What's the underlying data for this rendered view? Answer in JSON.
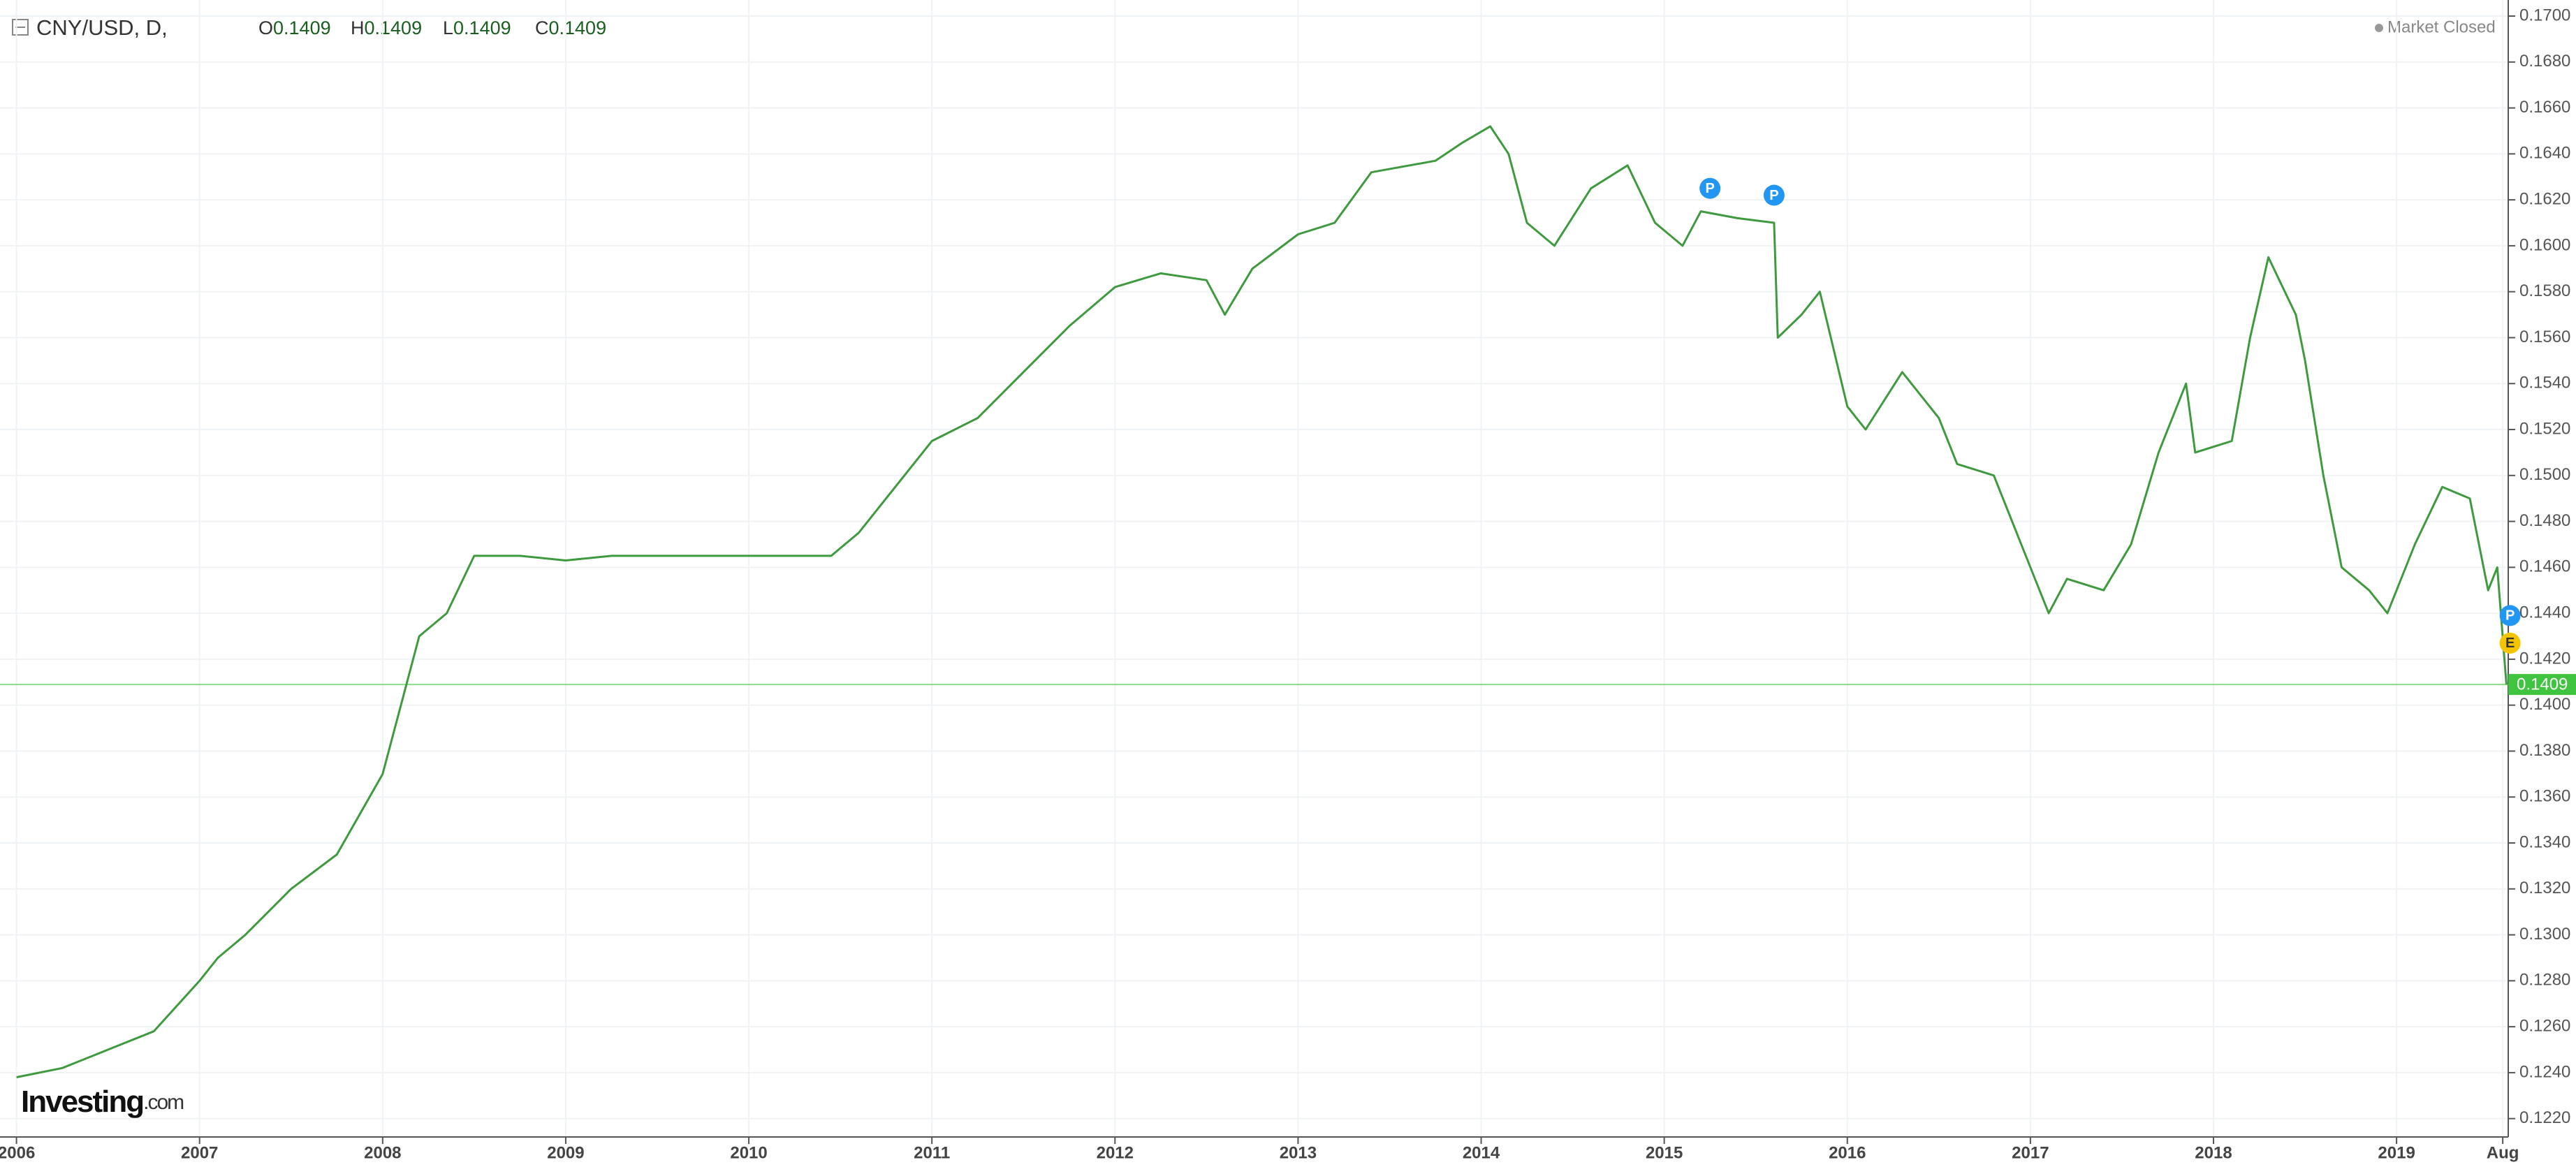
{
  "chart_data": {
    "type": "line",
    "title": "CNY/USD, D,",
    "ohlc": [
      {
        "label": "O",
        "value": 0.1409
      },
      {
        "label": "H",
        "value": 0.1409
      },
      {
        "label": "L",
        "value": 0.1409
      },
      {
        "label": "C",
        "value": 0.1409
      }
    ],
    "status": "Market Closed",
    "watermark": "Investing",
    "watermark_suffix": ".com",
    "last_price": 0.1409,
    "last_price_color": "#3ec43e",
    "x": [
      2006.0,
      2006.25,
      2006.5,
      2006.75,
      2007.0,
      2007.1,
      2007.25,
      2007.5,
      2007.75,
      2008.0,
      2008.1,
      2008.2,
      2008.35,
      2008.5,
      2008.75,
      2009.0,
      2009.25,
      2009.5,
      2010.0,
      2010.45,
      2010.6,
      2010.75,
      2011.0,
      2011.25,
      2011.5,
      2011.75,
      2012.0,
      2012.25,
      2012.5,
      2012.6,
      2012.75,
      2013.0,
      2013.2,
      2013.4,
      2013.75,
      2013.9,
      2014.05,
      2014.15,
      2014.25,
      2014.4,
      2014.6,
      2014.8,
      2014.95,
      2015.1,
      2015.2,
      2015.4,
      2015.6,
      2015.62,
      2015.75,
      2015.85,
      2016.0,
      2016.1,
      2016.3,
      2016.5,
      2016.6,
      2016.8,
      2016.95,
      2017.1,
      2017.2,
      2017.4,
      2017.55,
      2017.7,
      2017.85,
      2017.9,
      2018.1,
      2018.2,
      2018.3,
      2018.45,
      2018.5,
      2018.6,
      2018.7,
      2018.85,
      2018.95,
      2019.1,
      2019.25,
      2019.4,
      2019.5,
      2019.55,
      2019.6
    ],
    "series": [
      {
        "name": "CNY/USD",
        "color": "#3f9a3f",
        "values": [
          0.1238,
          0.1242,
          0.125,
          0.1258,
          0.128,
          0.129,
          0.13,
          0.132,
          0.1335,
          0.137,
          0.14,
          0.143,
          0.144,
          0.1465,
          0.1465,
          0.1463,
          0.1465,
          0.1465,
          0.1465,
          0.1465,
          0.1475,
          0.149,
          0.1515,
          0.1525,
          0.1545,
          0.1565,
          0.1582,
          0.1588,
          0.1585,
          0.157,
          0.159,
          0.1605,
          0.161,
          0.1632,
          0.1637,
          0.1645,
          0.1652,
          0.164,
          0.161,
          0.16,
          0.1625,
          0.1635,
          0.161,
          0.16,
          0.1615,
          0.1612,
          0.161,
          0.156,
          0.157,
          0.158,
          0.153,
          0.152,
          0.1545,
          0.1525,
          0.1505,
          0.15,
          0.147,
          0.144,
          0.1455,
          0.145,
          0.147,
          0.151,
          0.154,
          0.151,
          0.1515,
          0.156,
          0.1595,
          0.157,
          0.155,
          0.15,
          0.146,
          0.145,
          0.144,
          0.147,
          0.1495,
          0.149,
          0.145,
          0.146,
          0.1409
        ]
      }
    ],
    "markers": [
      {
        "label": "P",
        "x": 2015.25,
        "y": 0.1625,
        "color": "#2196f3"
      },
      {
        "label": "P",
        "x": 2015.6,
        "y": 0.1622,
        "color": "#2196f3"
      },
      {
        "label": "P",
        "x": 2019.62,
        "y": 0.1439,
        "color": "#2196f3"
      },
      {
        "label": "E",
        "x": 2019.62,
        "y": 0.1427,
        "color": "#f5c400"
      }
    ],
    "xlim": [
      2005.91,
      2019.61
    ],
    "xticks": [
      2006,
      2007,
      2008,
      2009,
      2010,
      2011,
      2012,
      2013,
      2014,
      2015,
      2016,
      2017,
      2018,
      2019,
      {
        "value": 2019.58,
        "label": "Aug"
      }
    ],
    "ylim": [
      0.1212,
      0.1707
    ],
    "yticks": [
      {
        "value": 0.122,
        "label": "0.1220"
      },
      {
        "value": 0.124,
        "label": "0.1240"
      },
      {
        "value": 0.126,
        "label": "0.1260"
      },
      {
        "value": 0.128,
        "label": "0.1280"
      },
      {
        "value": 0.13,
        "label": "0.1300"
      },
      {
        "value": 0.132,
        "label": "0.1320"
      },
      {
        "value": 0.134,
        "label": "0.1340"
      },
      {
        "value": 0.136,
        "label": "0.1360"
      },
      {
        "value": 0.138,
        "label": "0.1380"
      },
      {
        "value": 0.14,
        "label": "0.1400"
      },
      {
        "value": 0.142,
        "label": "0.1420"
      },
      {
        "value": 0.144,
        "label": "0.1440"
      },
      {
        "value": 0.146,
        "label": "0.1460"
      },
      {
        "value": 0.148,
        "label": "0.1480"
      },
      {
        "value": 0.15,
        "label": "0.1500"
      },
      {
        "value": 0.152,
        "label": "0.1520"
      },
      {
        "value": 0.154,
        "label": "0.1540"
      },
      {
        "value": 0.156,
        "label": "0.1560"
      },
      {
        "value": 0.158,
        "label": "0.1580"
      },
      {
        "value": 0.16,
        "label": "0.1600"
      },
      {
        "value": 0.162,
        "label": "0.1620"
      },
      {
        "value": 0.164,
        "label": "0.1640"
      },
      {
        "value": 0.166,
        "label": "0.1660"
      },
      {
        "value": 0.168,
        "label": "0.1680"
      },
      {
        "value": 0.17,
        "label": "0.1700"
      }
    ],
    "grid": true
  }
}
